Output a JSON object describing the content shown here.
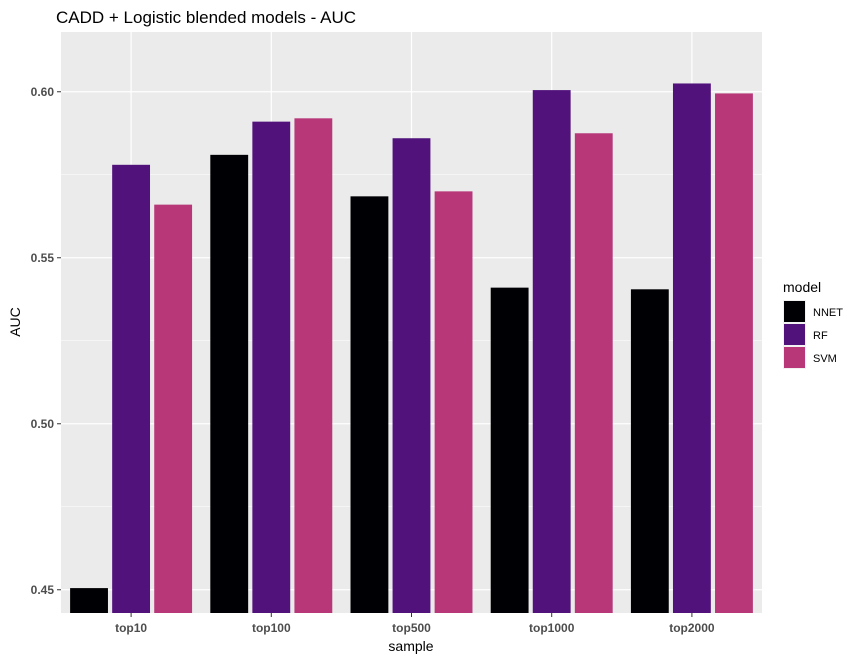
{
  "chart_data": {
    "type": "bar",
    "title": "CADD + Logistic blended models - AUC",
    "xlabel": "sample",
    "ylabel": "AUC",
    "categories": [
      "top10",
      "top100",
      "top500",
      "top1000",
      "top2000"
    ],
    "series": [
      {
        "name": "NNET",
        "color": "#000004",
        "values": [
          0.4505,
          0.581,
          0.5685,
          0.541,
          0.5405
        ]
      },
      {
        "name": "RF",
        "color": "#51127C",
        "values": [
          0.578,
          0.591,
          0.586,
          0.6005,
          0.6025
        ]
      },
      {
        "name": "SVM",
        "color": "#B73779",
        "values": [
          0.566,
          0.592,
          0.57,
          0.5875,
          0.5995
        ]
      }
    ],
    "ylim": [
      0.443,
      0.618
    ],
    "yticks": [
      0.45,
      0.5,
      0.55,
      0.6
    ],
    "ytick_labels": [
      "0.45",
      "0.50",
      "0.55",
      "0.60"
    ],
    "legend_title": "model",
    "legend_position": "right",
    "grid": true,
    "panel_background": "#EBEBEB"
  }
}
